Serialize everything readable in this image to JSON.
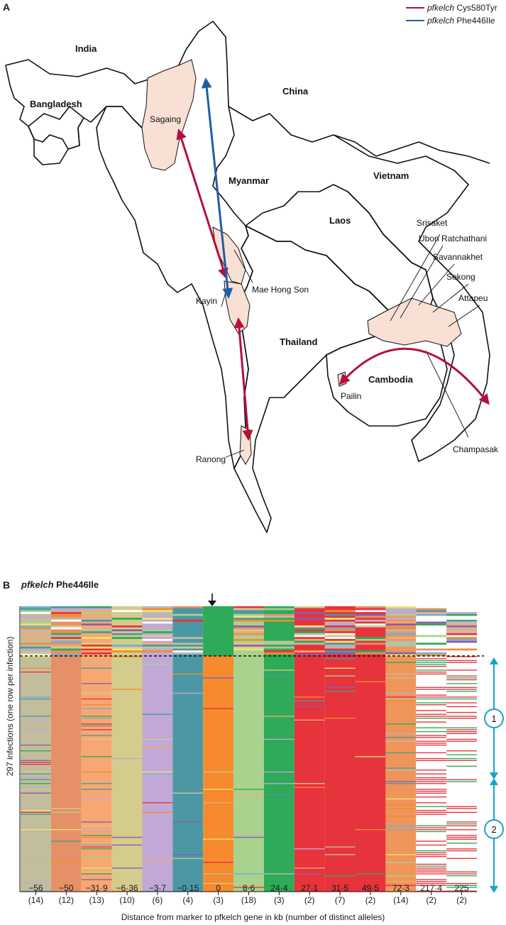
{
  "panel_a": {
    "label": "A",
    "legend": [
      {
        "gene": "pfkelch",
        "mutation": "Cys580Tyr",
        "color": "#b5103c"
      },
      {
        "gene": "pfkelch",
        "mutation": "Phe446Ile",
        "color": "#1d5fa8"
      }
    ],
    "countries": [
      "India",
      "Bangladesh",
      "China",
      "Myanmar",
      "Vietnam",
      "Laos",
      "Thailand",
      "Cambodia"
    ],
    "regions": [
      "Sagaing",
      "Mae Hong Son",
      "Kayin",
      "Ranong",
      "Srisaket",
      "Ubon Ratchathani",
      "Savannakhet",
      "Sekong",
      "Attapeu",
      "Pailin",
      "Champasak"
    ],
    "region_fill": "#f9e0d5"
  },
  "panel_b": {
    "label": "B",
    "title_gene": "pfkelch",
    "title_mutation": "Phe446Ile",
    "y_label": "297 infections (one row per infection)",
    "x_label": "Distance from marker to pfkelch gene in kb (number of distinct alleles)",
    "groups": [
      "1",
      "2"
    ],
    "accent_color": "#1aa3c9"
  },
  "chart_data": {
    "type": "heatmap",
    "title": "pfkelch Phe446Ile",
    "xlabel": "Distance from marker to pfkelch gene in kb (number of distinct alleles)",
    "ylabel": "297 infections (one row per infection)",
    "rows": 297,
    "markers": [
      {
        "distance": "−56",
        "alleles": "(14)"
      },
      {
        "distance": "−50",
        "alleles": "(12)"
      },
      {
        "distance": "−31·9",
        "alleles": "(13)"
      },
      {
        "distance": "−6·36",
        "alleles": "(10)"
      },
      {
        "distance": "−3·7",
        "alleles": "(6)"
      },
      {
        "distance": "−0·15",
        "alleles": "(4)"
      },
      {
        "distance": "0",
        "alleles": "(3)"
      },
      {
        "distance": "8·6",
        "alleles": "(18)"
      },
      {
        "distance": "24·4",
        "alleles": "(3)"
      },
      {
        "distance": "27·1",
        "alleles": "(2)"
      },
      {
        "distance": "31·5",
        "alleles": "(7)"
      },
      {
        "distance": "49·5",
        "alleles": "(2)"
      },
      {
        "distance": "72·3",
        "alleles": "(14)"
      },
      {
        "distance": "217·4",
        "alleles": "(2)"
      },
      {
        "distance": "225",
        "alleles": "(2)"
      }
    ],
    "dominant_colors": [
      "#c2bd9c",
      "#e59067",
      "#f7a772",
      "#d4cc8c",
      "#c1a8d6",
      "#4b98a4",
      "#f58a2e",
      "#a8d28d",
      "#2eaa58",
      "#e7333b",
      "#e7333b",
      "#e7333b",
      "#f0955a",
      "#ffffff",
      "#ffffff"
    ]
  }
}
